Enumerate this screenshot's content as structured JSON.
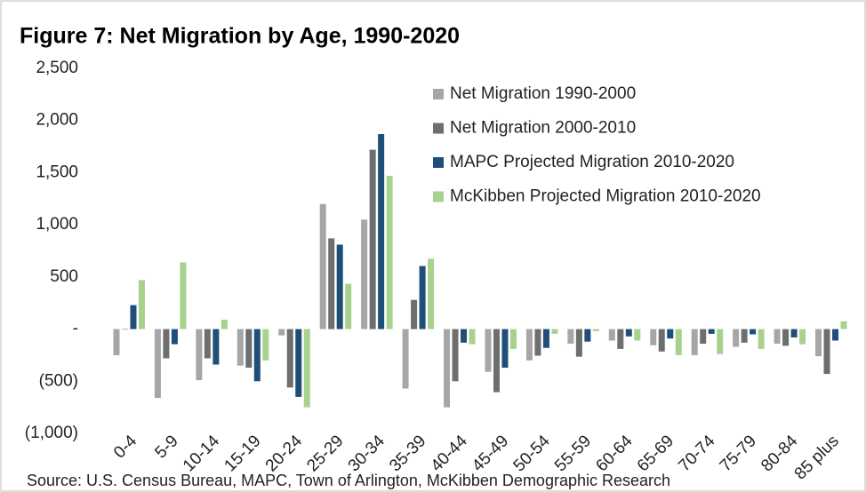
{
  "chart_data": {
    "type": "bar",
    "title": "Figure 7: Net Migration by Age, 1990-2020",
    "source": "Source: U.S. Census Bureau, MAPC, Town of Arlington, McKibben Demographic Research",
    "categories": [
      "0-4",
      "5-9",
      "10-14",
      "15-19",
      "20-24",
      "25-29",
      "30-34",
      "35-39",
      "40-44",
      "45-49",
      "50-54",
      "55-59",
      "60-64",
      "65-69",
      "70-74",
      "75-79",
      "80-84",
      "85 plus"
    ],
    "series": [
      {
        "name": "Net Migration 1990-2000",
        "color": "#a6a6a6",
        "values": [
          -250,
          -660,
          -490,
          -350,
          -60,
          1200,
          1050,
          -570,
          -750,
          -410,
          -300,
          -140,
          -110,
          -155,
          -250,
          -170,
          -140,
          -260
        ]
      },
      {
        "name": "Net Migration 2000-2010",
        "color": "#6e6e6e",
        "values": [
          0,
          -280,
          -280,
          -370,
          -560,
          870,
          1720,
          280,
          -500,
          -605,
          -255,
          -265,
          -190,
          -215,
          -140,
          -130,
          -160,
          -430
        ]
      },
      {
        "name": "MAPC Projected Migration 2010-2020",
        "color": "#1f4e79",
        "values": [
          230,
          -145,
          -340,
          -500,
          -650,
          810,
          1870,
          605,
          -130,
          -370,
          -180,
          -120,
          -70,
          -90,
          -45,
          -50,
          -80,
          -110
        ]
      },
      {
        "name": "McKibben Projected Migration 2010-2020",
        "color": "#a9d18e",
        "values": [
          470,
          640,
          90,
          -300,
          -750,
          435,
          1470,
          675,
          -145,
          -190,
          -45,
          -20,
          -110,
          -250,
          -240,
          -190,
          -145,
          75
        ]
      }
    ],
    "ylim": [
      -1000,
      2500
    ],
    "yticks": [
      {
        "value": 2500,
        "label": "2,500"
      },
      {
        "value": 2000,
        "label": "2,000"
      },
      {
        "value": 1500,
        "label": "1,500"
      },
      {
        "value": 1000,
        "label": "1,000"
      },
      500,
      {
        "value": 0,
        "label": "-"
      },
      {
        "value": -500,
        "label": "(500)"
      },
      {
        "value": -1000,
        "label": "(1,000)"
      }
    ],
    "legend": "top-right"
  }
}
